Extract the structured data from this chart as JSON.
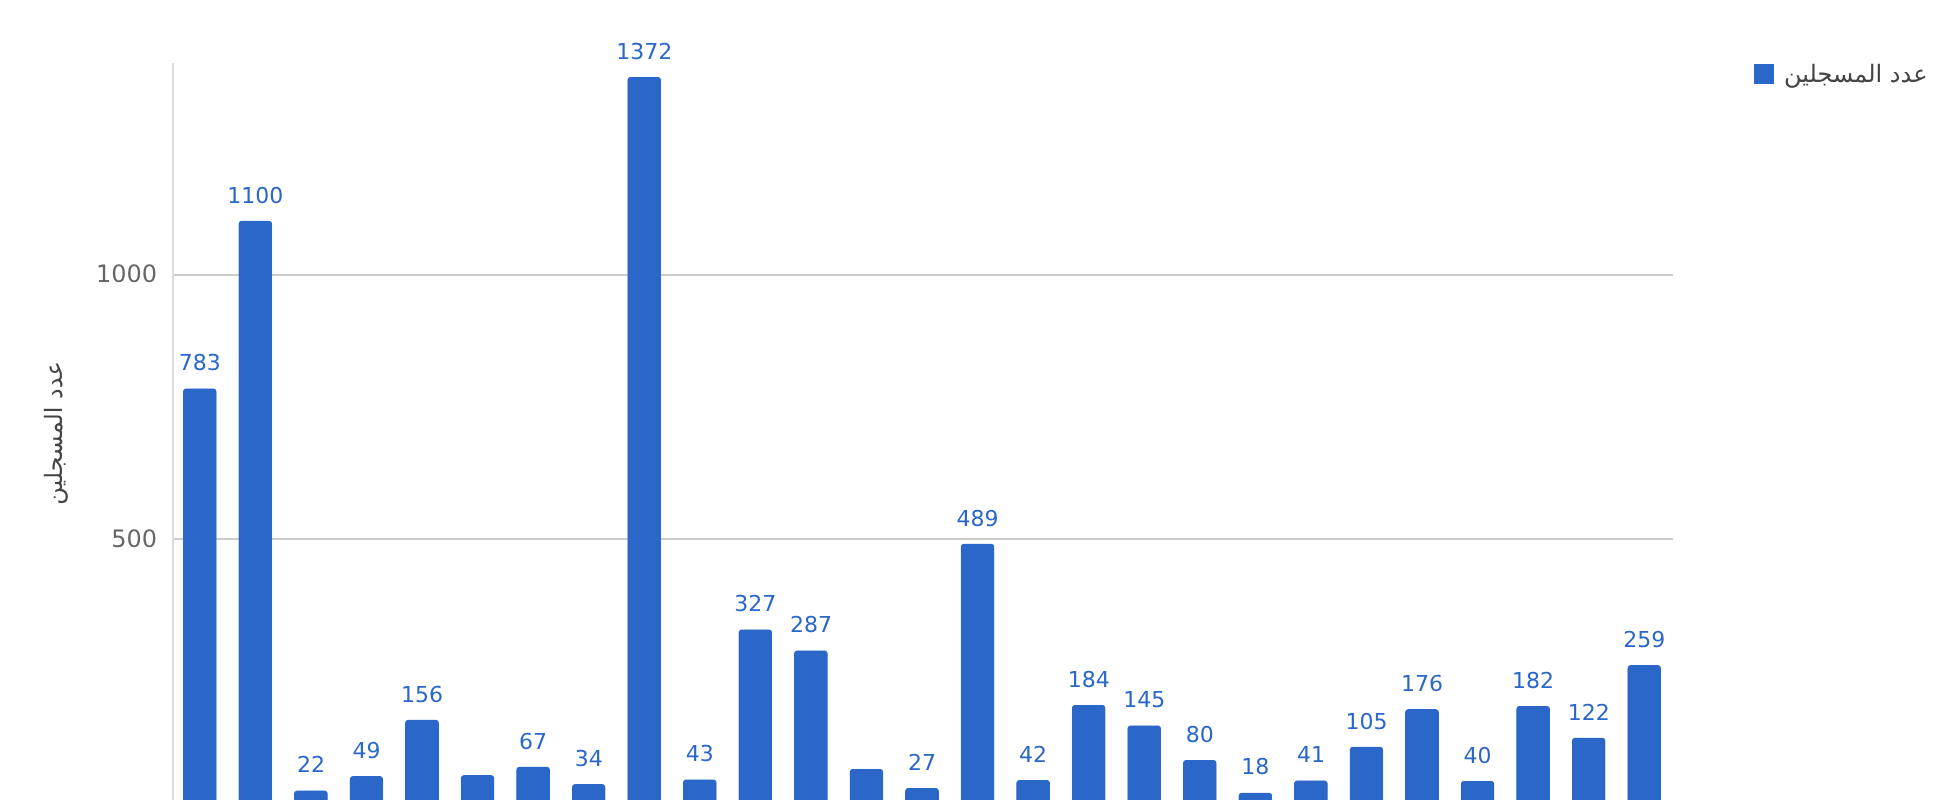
{
  "chart_data": {
    "type": "bar",
    "ylabel": "عدد المسجلين",
    "categories": [
      null,
      null,
      null,
      null,
      null,
      null,
      null,
      null,
      null,
      null,
      null,
      null,
      null,
      null,
      null,
      null,
      null,
      null,
      null,
      null,
      null,
      null,
      null,
      null,
      null,
      null,
      null
    ],
    "series": [
      {
        "name": "عدد المسجلين",
        "color": "#2a67c9",
        "values": [
          783,
          1100,
          22,
          49,
          156,
          51,
          67,
          34,
          1372,
          43,
          327,
          287,
          63,
          27,
          489,
          42,
          184,
          145,
          80,
          18,
          41,
          105,
          176,
          40,
          182,
          122,
          259
        ],
        "value_labels": [
          "783",
          "1100",
          "22",
          "49",
          "156",
          null,
          "67",
          "34",
          "1372",
          "43",
          "327",
          "287",
          null,
          "27",
          "489",
          "42",
          "184",
          "145",
          "80",
          "18",
          "41",
          "105",
          "176",
          "40",
          "182",
          "122",
          "259"
        ]
      }
    ],
    "ylim": [
      0,
      1400
    ],
    "yticks": [
      500,
      1000
    ],
    "grid": "y",
    "legend": "top right"
  }
}
